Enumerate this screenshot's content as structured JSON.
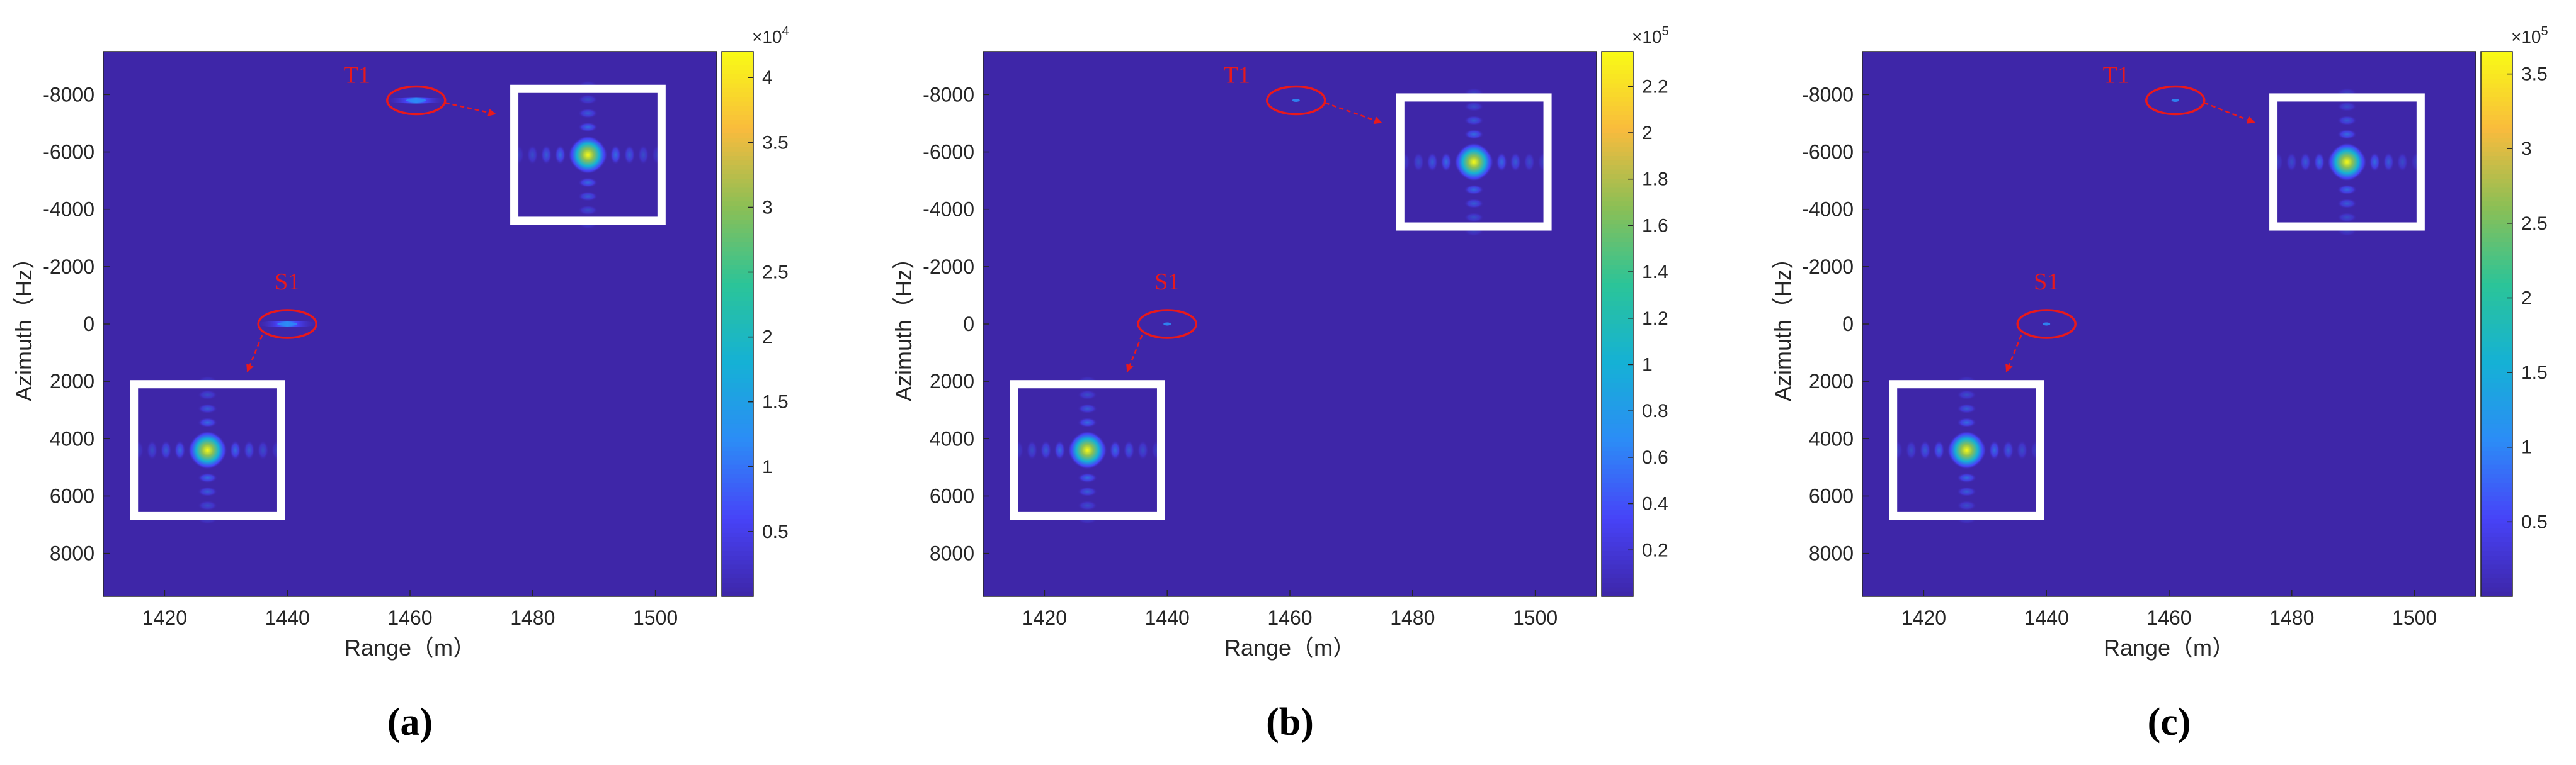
{
  "chart_data": [
    {
      "type": "heatmap",
      "panel_label": "(a)",
      "xlabel": "Range（m）",
      "ylabel": "Azimuth（Hz）",
      "xlim": [
        1410,
        1510
      ],
      "ylim": [
        -9500,
        9500
      ],
      "y_reversed": true,
      "xticks": [
        "1420",
        "1440",
        "1460",
        "1480",
        "1500"
      ],
      "yticks": [
        "-8000",
        "-6000",
        "-4000",
        "-2000",
        "0",
        "2000",
        "4000",
        "6000",
        "8000"
      ],
      "colorbar": {
        "multiplier": "×10",
        "exponent": "4",
        "range": [
          0,
          42000
        ],
        "ticks": [
          "0.5",
          "1",
          "1.5",
          "2",
          "2.5",
          "3",
          "3.5",
          "4"
        ]
      },
      "colormap": [
        "#3e26a8",
        "#4743f8",
        "#2c8cf6",
        "#15b1d5",
        "#2bc499",
        "#8bbf55",
        "#f9bb3d",
        "#f9fb15"
      ],
      "background_color": "#3e26a8",
      "targets": [
        {
          "name": "T1",
          "range": 1461,
          "azimuth": -7800,
          "spread": "strong azimuth-smeared"
        },
        {
          "name": "S1",
          "range": 1440,
          "azimuth": 0,
          "spread": "strong azimuth-smeared"
        }
      ],
      "insets": [
        {
          "target": "T1",
          "x_range": [
            1477,
            1501
          ],
          "y_range": [
            -8200,
            -3600
          ]
        },
        {
          "target": "S1",
          "x_range": [
            1415,
            1439
          ],
          "y_range": [
            2100,
            6700
          ]
        }
      ]
    },
    {
      "type": "heatmap",
      "panel_label": "(b)",
      "xlabel": "Range（m）",
      "ylabel": "Azimuth（Hz）",
      "xlim": [
        1410,
        1510
      ],
      "ylim": [
        -9500,
        9500
      ],
      "y_reversed": true,
      "xticks": [
        "1420",
        "1440",
        "1460",
        "1480",
        "1500"
      ],
      "yticks": [
        "-8000",
        "-6000",
        "-4000",
        "-2000",
        "0",
        "2000",
        "4000",
        "6000",
        "8000"
      ],
      "colorbar": {
        "multiplier": "×10",
        "exponent": "5",
        "range": [
          0,
          235000
        ],
        "ticks": [
          "0.2",
          "0.4",
          "0.6",
          "0.8",
          "1",
          "1.2",
          "1.4",
          "1.6",
          "1.8",
          "2",
          "2.2"
        ]
      },
      "colormap": [
        "#3e26a8",
        "#4743f8",
        "#2c8cf6",
        "#15b1d5",
        "#2bc499",
        "#8bbf55",
        "#f9bb3d",
        "#f9fb15"
      ],
      "background_color": "#3e26a8",
      "targets": [
        {
          "name": "T1",
          "range": 1461,
          "azimuth": -7800,
          "spread": "focused"
        },
        {
          "name": "S1",
          "range": 1440,
          "azimuth": 0,
          "spread": "focused"
        }
      ],
      "insets": [
        {
          "target": "T1",
          "x_range": [
            1478,
            1502
          ],
          "y_range": [
            -7900,
            -3400
          ]
        },
        {
          "target": "S1",
          "x_range": [
            1415,
            1439
          ],
          "y_range": [
            2100,
            6700
          ]
        }
      ]
    },
    {
      "type": "heatmap",
      "panel_label": "(c)",
      "xlabel": "Range（m）",
      "ylabel": "Azimuth（Hz）",
      "xlim": [
        1410,
        1510
      ],
      "ylim": [
        -9500,
        9500
      ],
      "y_reversed": true,
      "xticks": [
        "1420",
        "1440",
        "1460",
        "1480",
        "1500"
      ],
      "yticks": [
        "-8000",
        "-6000",
        "-4000",
        "-2000",
        "0",
        "2000",
        "4000",
        "6000",
        "8000"
      ],
      "colorbar": {
        "multiplier": "×10",
        "exponent": "5",
        "range": [
          0,
          365000
        ],
        "ticks": [
          "0.5",
          "1",
          "1.5",
          "2",
          "2.5",
          "3",
          "3.5"
        ]
      },
      "colormap": [
        "#3e26a8",
        "#4743f8",
        "#2c8cf6",
        "#15b1d5",
        "#2bc499",
        "#8bbf55",
        "#f9bb3d",
        "#f9fb15"
      ],
      "background_color": "#3e26a8",
      "targets": [
        {
          "name": "T1",
          "range": 1461,
          "azimuth": -7800,
          "spread": "focused"
        },
        {
          "name": "S1",
          "range": 1440,
          "azimuth": 0,
          "spread": "focused"
        }
      ],
      "insets": [
        {
          "target": "T1",
          "x_range": [
            1477,
            1501
          ],
          "y_range": [
            -7900,
            -3400
          ]
        },
        {
          "target": "S1",
          "x_range": [
            1415,
            1439
          ],
          "y_range": [
            2100,
            6700
          ]
        }
      ]
    }
  ]
}
